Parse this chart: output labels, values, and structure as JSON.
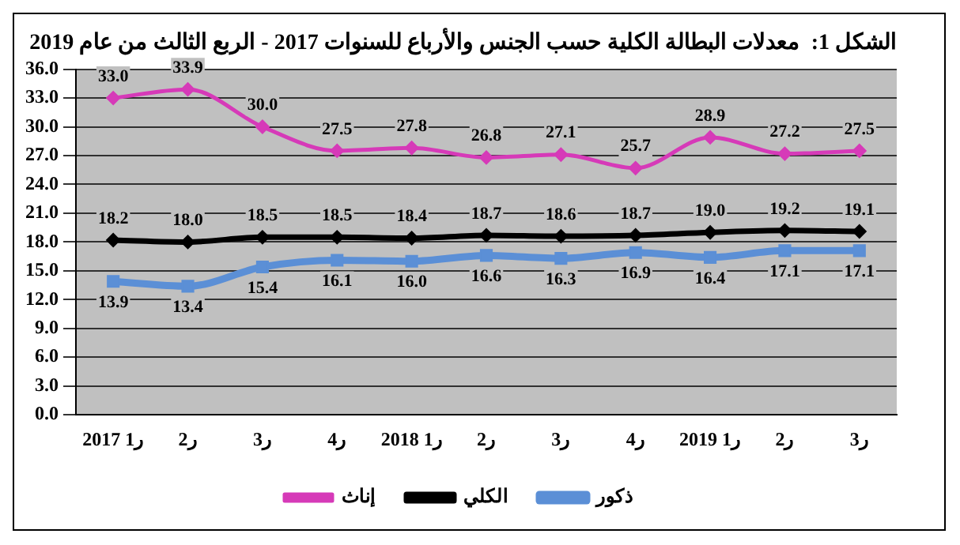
{
  "chart_data": {
    "type": "line",
    "title": "الشكل 1:  معدلات البطالة الكلية حسب الجنس والأرباع للسنوات 2017 - الربع الثالث من عام 2019",
    "categories": [
      "ر1 2017",
      "ر2",
      "ر3",
      "ر4",
      "ر1 2018",
      "ر2",
      "ر3",
      "ر4",
      "ر1 2019",
      "ر2",
      "ر3"
    ],
    "series": [
      {
        "name": "إناث",
        "color": "#d63ab8",
        "marker": "diamond",
        "values": [
          33.0,
          33.9,
          30.0,
          27.5,
          27.8,
          26.8,
          27.1,
          25.7,
          28.9,
          27.2,
          27.5
        ],
        "value_labels": [
          "33.0",
          "33.9",
          "30.0",
          "27.5",
          "27.8",
          "26.8",
          "27.1",
          "25.7",
          "28.9",
          "27.2",
          "27.5"
        ]
      },
      {
        "name": "الكلي",
        "color": "#000000",
        "marker": "diamond",
        "values": [
          18.2,
          18.0,
          18.5,
          18.5,
          18.4,
          18.7,
          18.6,
          18.7,
          19.0,
          19.2,
          19.1
        ],
        "value_labels": [
          "18.2",
          "18.0",
          "18.5",
          "18.5",
          "18.4",
          "18.7",
          "18.6",
          "18.7",
          "19.0",
          "19.2",
          "19.1"
        ]
      },
      {
        "name": "ذكور",
        "color": "#5b8fd6",
        "marker": "square",
        "values": [
          13.9,
          13.4,
          15.4,
          16.1,
          16.0,
          16.6,
          16.3,
          16.9,
          16.4,
          17.1,
          17.1
        ],
        "value_labels": [
          "13.9",
          "13.4",
          "15.4",
          "16.1",
          "16.0",
          "16.6",
          "16.3",
          "16.9",
          "16.4",
          "17.1",
          "17.1"
        ]
      }
    ],
    "ylim": [
      0,
      36
    ],
    "yticks": [
      {
        "value": 0,
        "label": "0.0"
      },
      {
        "value": 3,
        "label": "3.0"
      },
      {
        "value": 6,
        "label": "6.0"
      },
      {
        "value": 9,
        "label": "9.0"
      },
      {
        "value": 12,
        "label": "12.0"
      },
      {
        "value": 15,
        "label": "15.0"
      },
      {
        "value": 18,
        "label": "18.0"
      },
      {
        "value": 21,
        "label": "21.0"
      },
      {
        "value": 24,
        "label": "24.0"
      },
      {
        "value": 27,
        "label": "27.0"
      },
      {
        "value": 30,
        "label": "30.0"
      },
      {
        "value": 33,
        "label": "33.0"
      },
      {
        "value": 36,
        "label": "36.0"
      }
    ],
    "grid": "y",
    "legend": "bottom",
    "line_style": "solid"
  }
}
